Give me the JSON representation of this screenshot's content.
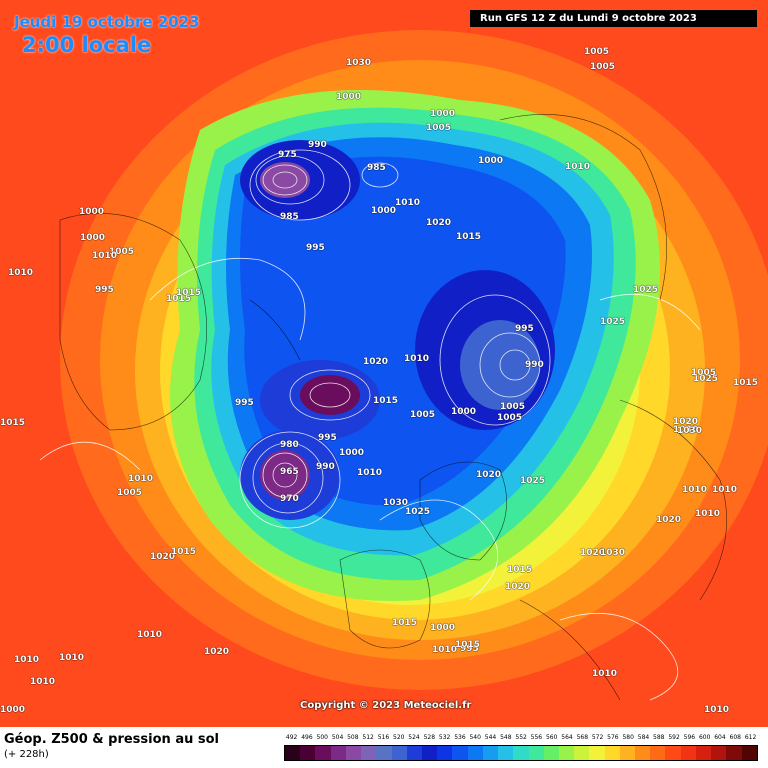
{
  "header": {
    "date": "Jeudi 19 octobre 2023",
    "time": "2:00 locale",
    "run": "Run GFS 12 Z du Lundi 9 octobre 2023"
  },
  "copyright": "Copyright © 2023 Meteociel.fr",
  "footer": {
    "title": "Géop. Z500 & pression au sol",
    "lead": "(+ 228h)"
  },
  "legend": {
    "ticks": [
      "492",
      "496",
      "500",
      "504",
      "508",
      "512",
      "516",
      "520",
      "524",
      "528",
      "532",
      "536",
      "540",
      "544",
      "548",
      "552",
      "556",
      "560",
      "564",
      "568",
      "572",
      "576",
      "580",
      "584",
      "588",
      "592",
      "596",
      "600",
      "604",
      "608",
      "612"
    ],
    "colors": [
      "#2a001a",
      "#4b0035",
      "#6a0d5c",
      "#7c2a86",
      "#8a4aa3",
      "#7f63b6",
      "#5872c4",
      "#3c63d0",
      "#1d3cd8",
      "#1020c6",
      "#0d35e6",
      "#0e54f0",
      "#0d78f4",
      "#169cf0",
      "#24c0e8",
      "#2fdcc6",
      "#3fe89a",
      "#66ee66",
      "#99f24a",
      "#ccf23a",
      "#f2f23a",
      "#ffd82a",
      "#ffb21f",
      "#ff8c18",
      "#ff6a16",
      "#ff4a16",
      "#f23314",
      "#d62010",
      "#b0140c",
      "#800a08",
      "#500404"
    ]
  },
  "pressure_labels": [
    "975",
    "985",
    "990",
    "995",
    "1000",
    "1010",
    "1020",
    "1015",
    "1000",
    "1005",
    "995",
    "1025",
    "1015",
    "1030",
    "1015",
    "1000",
    "995",
    "1020",
    "1010",
    "1015",
    "1010",
    "1000",
    "1005",
    "1025",
    "1020",
    "1025",
    "1015",
    "1030",
    "1015",
    "1010",
    "1005",
    "1030",
    "1025",
    "1005",
    "1015",
    "1020",
    "1020",
    "1010",
    "965",
    "970",
    "980",
    "995",
    "1000",
    "990",
    "1010",
    "1030",
    "1025",
    "1005",
    "1015",
    "1000",
    "1005",
    "1010",
    "1020",
    "1010",
    "1010",
    "1020",
    "1010",
    "1010",
    "1020",
    "1030",
    "1010",
    "1010",
    "1000",
    "1010",
    "1015",
    "995",
    "985",
    "1020",
    "1010",
    "1005",
    "1005",
    "1000",
    "1015",
    "1010",
    "995",
    "1000",
    "1000",
    "1005",
    "1010",
    "990"
  ]
}
